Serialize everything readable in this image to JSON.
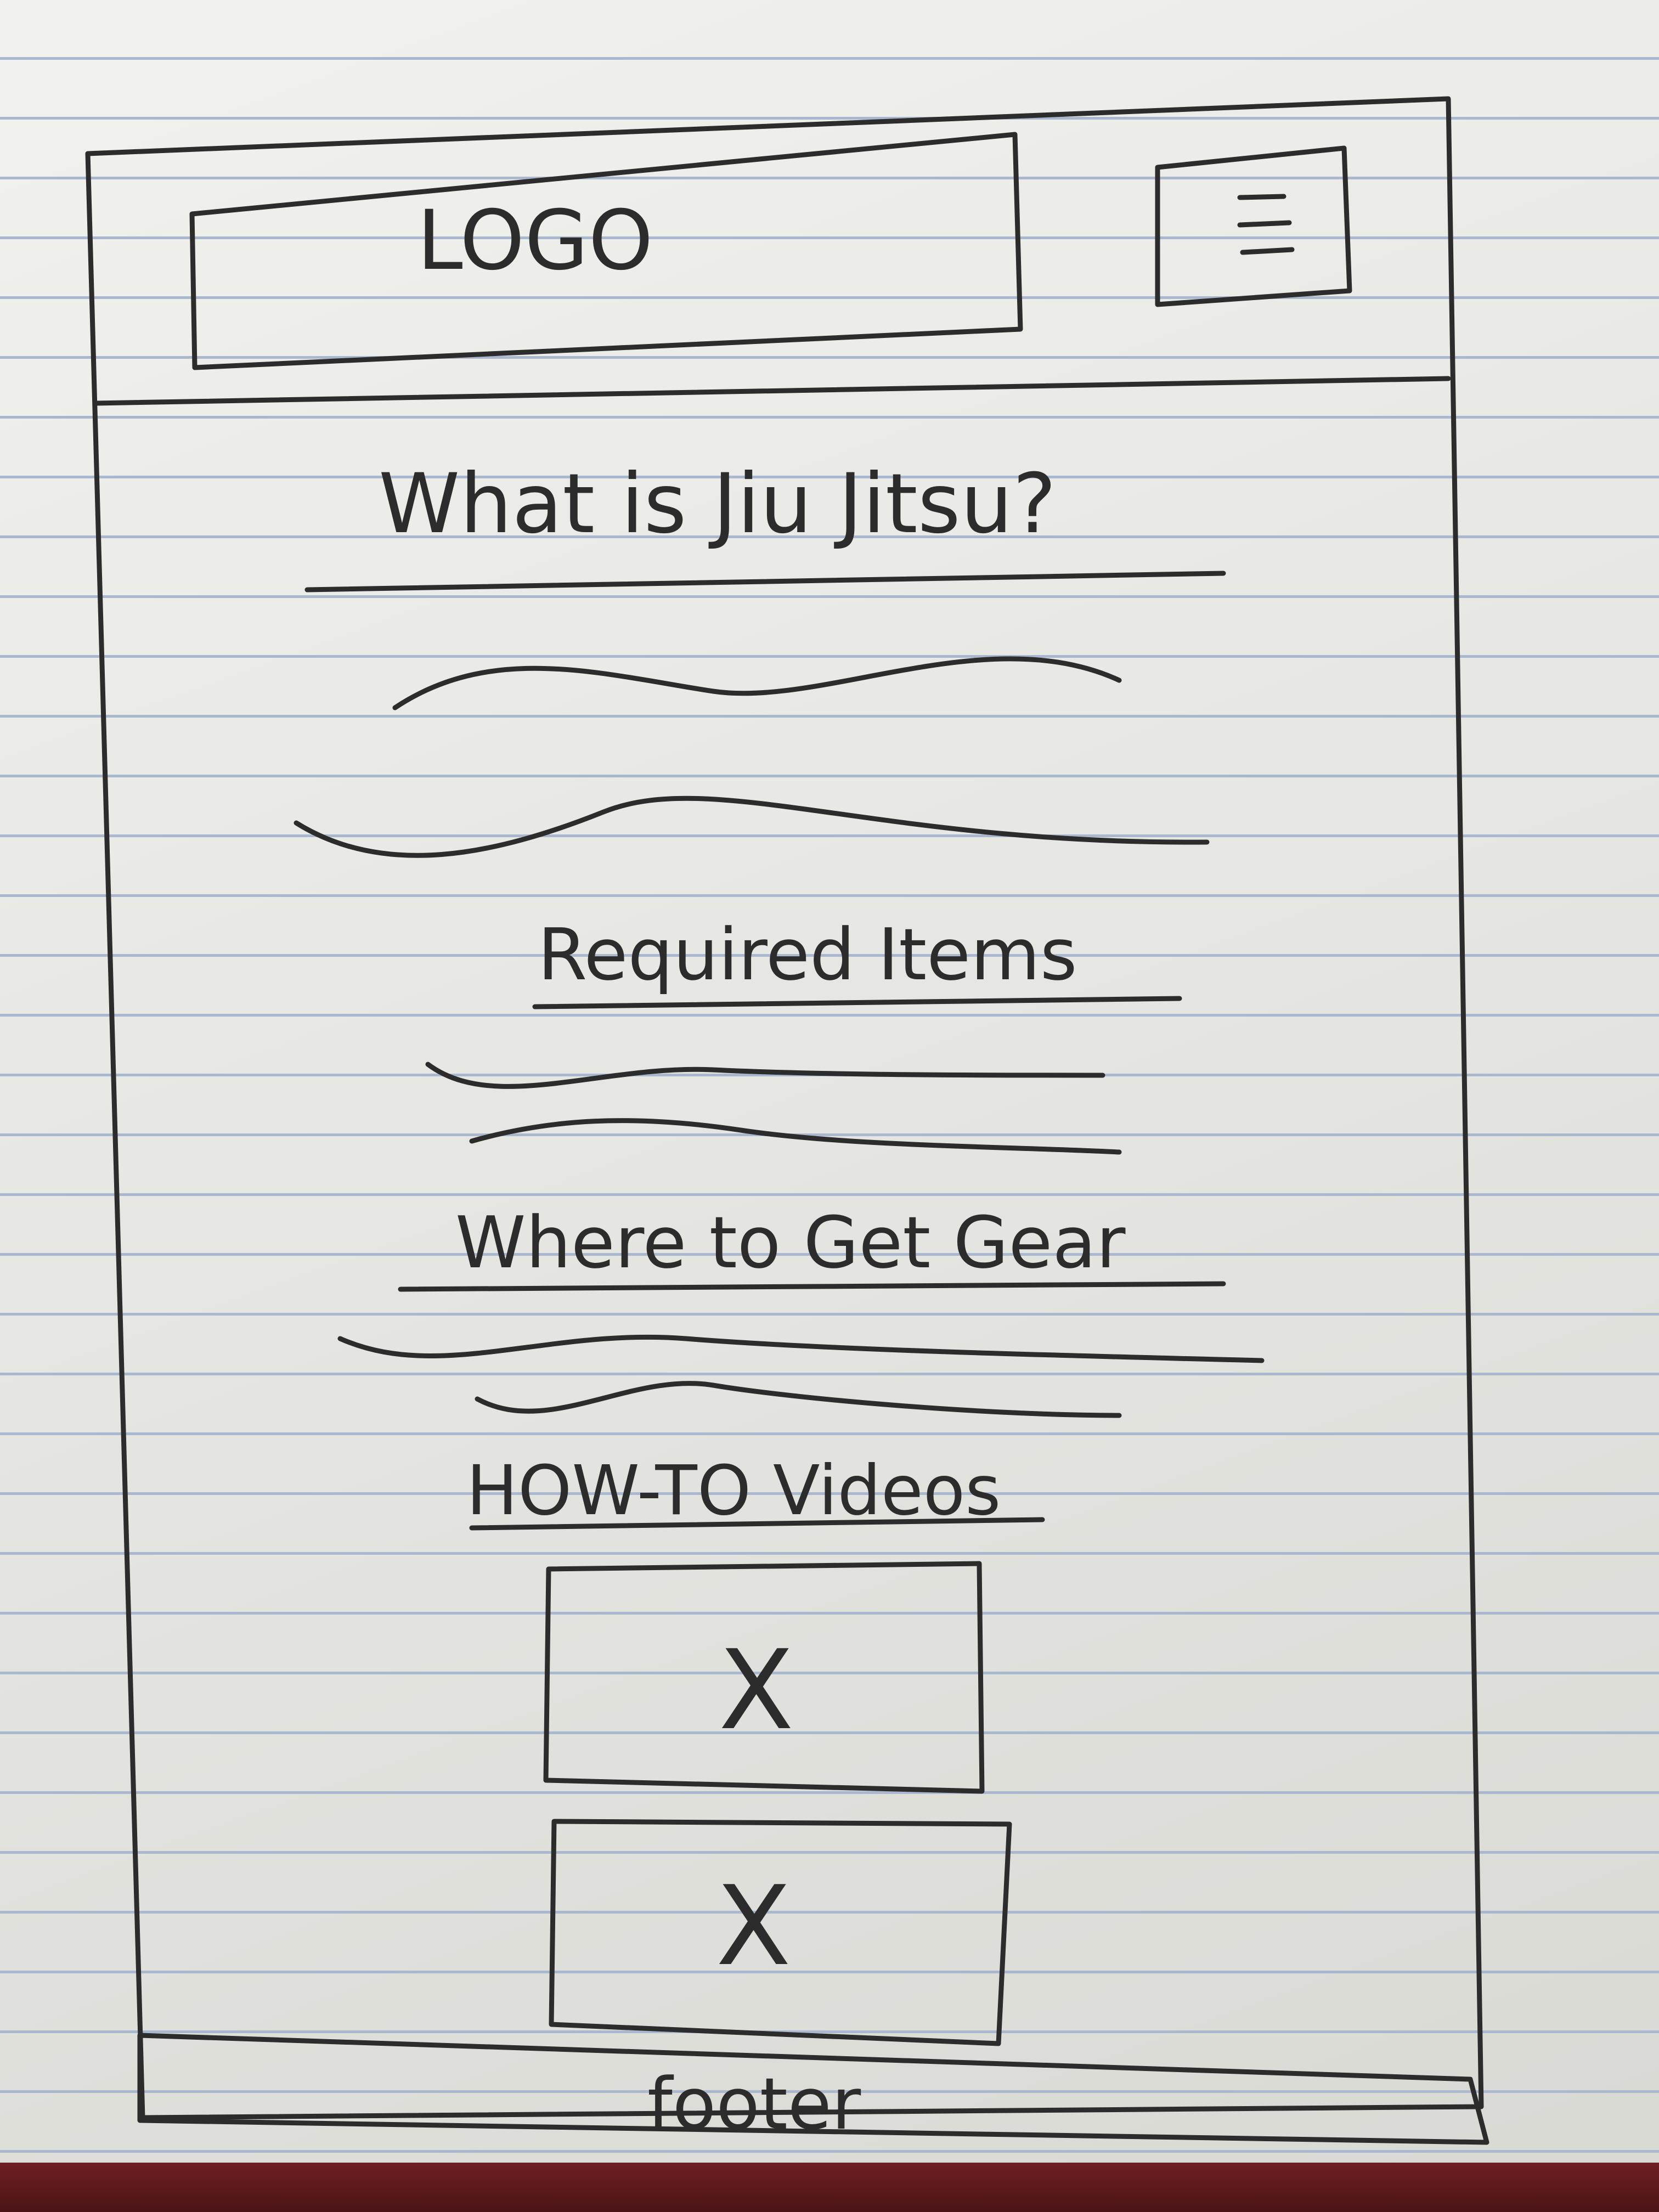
{
  "header": {
    "logo_label": "LOGO",
    "menu_icon": "hamburger-menu-icon"
  },
  "sections": {
    "what_is": {
      "title": "What is Jiu Jitsu?"
    },
    "required": {
      "title": "Required Items"
    },
    "where": {
      "title": "Where to Get Gear"
    },
    "videos": {
      "title": "HOW-TO Videos",
      "placeholders": [
        "X",
        "X"
      ]
    }
  },
  "footer": {
    "label": "footer"
  },
  "colors": {
    "ink": "#2c2c2c",
    "paper": "#ececE8",
    "rule_lines": "#aab8cf",
    "table": "#6e1f22"
  }
}
